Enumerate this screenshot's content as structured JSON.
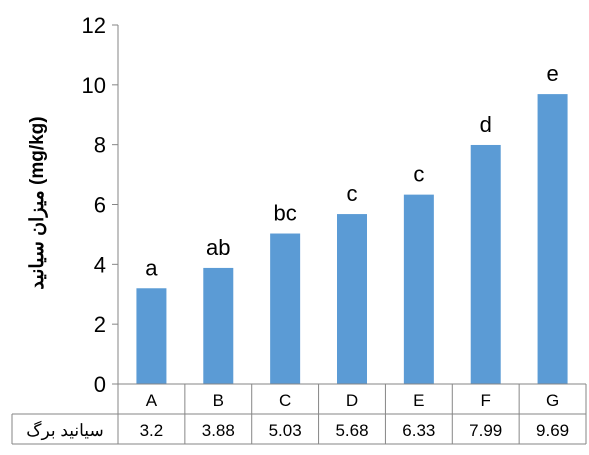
{
  "chart_data": {
    "type": "bar",
    "ylabel": "میزان سیانید (mg/kg)",
    "ylim": [
      0,
      12
    ],
    "yticks": [
      0,
      2,
      4,
      6,
      8,
      10,
      12
    ],
    "grid": false,
    "categories": [
      "A",
      "B",
      "C",
      "D",
      "E",
      "F",
      "G"
    ],
    "values": [
      3.2,
      3.88,
      5.03,
      5.68,
      6.33,
      7.99,
      9.69
    ],
    "significance_letters": [
      "a",
      "ab",
      "bc",
      "c",
      "c",
      "d",
      "e"
    ],
    "data_table": {
      "row_label": "سیانید برگ",
      "values": [
        "3.2",
        "3.88",
        "5.03",
        "5.68",
        "6.33",
        "7.99",
        "9.69"
      ]
    },
    "colors": {
      "bar": "#5b9bd5",
      "axis": "#868686"
    }
  }
}
